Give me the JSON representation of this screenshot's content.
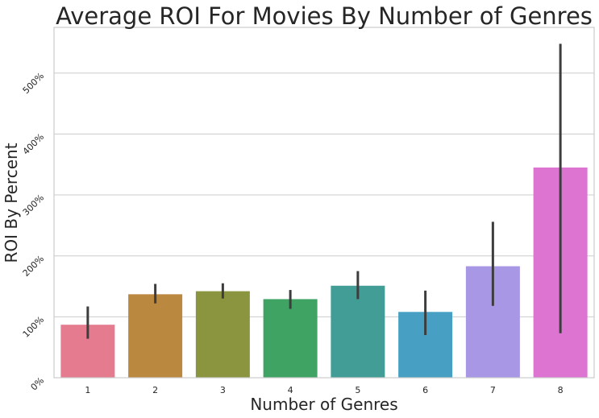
{
  "chart_data": {
    "type": "bar",
    "title": "Average ROI For Movies By Number of Genres",
    "xlabel": "Number of Genres",
    "ylabel": "ROI By Percent",
    "categories": [
      "1",
      "2",
      "3",
      "4",
      "5",
      "6",
      "7",
      "8"
    ],
    "values": [
      87,
      137,
      142,
      129,
      151,
      108,
      183,
      345
    ],
    "error_bars": [
      [
        64,
        117
      ],
      [
        122,
        154
      ],
      [
        130,
        155
      ],
      [
        113,
        144
      ],
      [
        129,
        175
      ],
      [
        70,
        143
      ],
      [
        118,
        256
      ],
      [
        73,
        548
      ]
    ],
    "ylim": [
      0,
      575
    ],
    "yticks": [
      0,
      100,
      200,
      300,
      400,
      500
    ],
    "ytick_labels": [
      "0%",
      "100%",
      "200%",
      "300%",
      "400%",
      "500%"
    ],
    "colors": [
      "#e57b8f",
      "#bb8840",
      "#8b9540",
      "#3fa364",
      "#429d96",
      "#47a0c4",
      "#a897e4",
      "#dd74d2"
    ],
    "grid": true,
    "legend": "none"
  }
}
